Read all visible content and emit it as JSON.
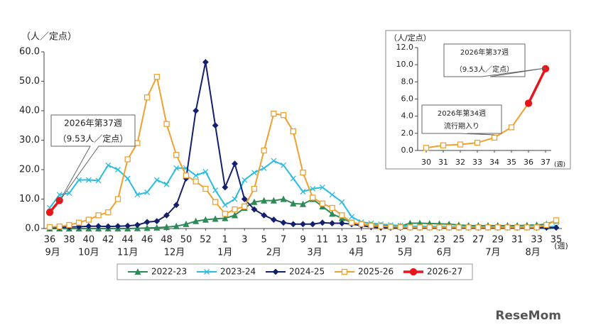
{
  "chart_data": [
    {
      "type": "line",
      "y_label": "（人／定点）",
      "x_unit": "(週)",
      "categories": [
        36,
        null,
        38,
        null,
        40,
        null,
        42,
        null,
        44,
        null,
        46,
        null,
        48,
        null,
        50,
        null,
        52,
        null,
        1,
        null,
        3,
        null,
        5,
        null,
        7,
        null,
        9,
        null,
        11,
        null,
        13,
        null,
        15,
        null,
        17,
        null,
        19,
        null,
        21,
        null,
        23,
        null,
        25,
        null,
        27,
        null,
        29,
        null,
        31,
        null,
        33,
        null,
        35
      ],
      "months": [
        "9月",
        "10月",
        "11月",
        "12月",
        "1月",
        "2月",
        "3月",
        "4月",
        "5月",
        "6月",
        "7月",
        "8月"
      ],
      "ylim": [
        0,
        60
      ],
      "yticks": [
        {
          "value": 0,
          "label": "0.0"
        },
        {
          "value": 10,
          "label": "10.0"
        },
        {
          "value": 20,
          "label": "20.0"
        },
        {
          "value": 30,
          "label": "30.0"
        },
        {
          "value": 40,
          "label": "40.0"
        },
        {
          "value": 50,
          "label": "50.0"
        },
        {
          "value": 60,
          "label": "60.0"
        }
      ],
      "legend": "bottom",
      "series": [
        {
          "name": "2022-23",
          "color": "#2e8b57",
          "marker": "triangle",
          "values": [
            0,
            0,
            0,
            0,
            0,
            0,
            0,
            0,
            0,
            0.1,
            0.2,
            0.3,
            0.5,
            0.8,
            1.5,
            2.5,
            3,
            3.3,
            3.5,
            4.5,
            7,
            9,
            9.5,
            9.5,
            10,
            8.5,
            8.3,
            10,
            7.5,
            5,
            3.5,
            2,
            1.5,
            1.2,
            1,
            0.8,
            0.8,
            1.8,
            1.8,
            1.7,
            1.6,
            1.5,
            1.2,
            1,
            1,
            1,
            1,
            1,
            1,
            1.1,
            1.2,
            1.5,
            2.7
          ]
        },
        {
          "name": "2023-24",
          "color": "#2bbde0",
          "marker": "x",
          "values": [
            7,
            11.5,
            12,
            16.5,
            16.5,
            16.3,
            21.5,
            20,
            17,
            11.5,
            12.3,
            16.5,
            15,
            20.5,
            20.5,
            18,
            19.3,
            13,
            8,
            10,
            16.5,
            19,
            20.5,
            23,
            21.5,
            17,
            12.5,
            13.5,
            14,
            11.5,
            9,
            4,
            2.2,
            1.8,
            1.5,
            1.2,
            1,
            0.8,
            0.8,
            0.7,
            0.7,
            0.6,
            0.6,
            0.5,
            0.5,
            0.5,
            0.5,
            0.5,
            0.5,
            0.5,
            0.5,
            0.6,
            0.7
          ]
        },
        {
          "name": "2024-25",
          "color": "#14206e",
          "marker": "diamond",
          "values": [
            0.3,
            0.4,
            0.5,
            0.6,
            0.8,
            0.8,
            0.7,
            0.8,
            0.9,
            1.2,
            2.2,
            2.5,
            4.5,
            8,
            17,
            40,
            56.5,
            35,
            14,
            22,
            10,
            6.5,
            4.5,
            3,
            2,
            1.5,
            1.5,
            1.5,
            2,
            1.8,
            1.8,
            1.5,
            1,
            0.5,
            0.3,
            0.3,
            0.3,
            0.3,
            0.3,
            0.3,
            0.3,
            0.3,
            0.3,
            0.3,
            0.3,
            0.3,
            0.3,
            0.3,
            0.3,
            0.3,
            0.3,
            0.3,
            0.3
          ]
        },
        {
          "name": "2025-26",
          "color": "#f0a030",
          "marker": "square",
          "values": [
            0.5,
            0.7,
            1.2,
            2,
            3,
            4.5,
            5.5,
            10,
            23.5,
            29,
            44.5,
            51.5,
            35.5,
            25,
            18,
            16,
            13.5,
            9,
            5,
            6.5,
            7.5,
            13.5,
            26.5,
            39,
            38.5,
            33,
            19,
            10.5,
            8.5,
            7,
            4.5,
            2,
            1.5,
            1,
            0.8,
            0.6,
            0.5,
            0.4,
            0.4,
            0.4,
            0.4,
            0.4,
            0.4,
            0.4,
            0.4,
            0.4,
            0.4,
            0.4,
            0.4,
            0.4,
            0.4,
            1.2,
            2.8
          ]
        },
        {
          "name": "2026-27",
          "color": "#e8161b",
          "marker": "circle",
          "values": [
            5.5,
            9.53,
            null,
            null,
            null,
            null,
            null,
            null,
            null,
            null,
            null,
            null,
            null,
            null,
            null,
            null,
            null,
            null,
            null,
            null,
            null,
            null,
            null,
            null,
            null,
            null,
            null,
            null,
            null,
            null,
            null,
            null,
            null,
            null,
            null,
            null,
            null,
            null,
            null,
            null,
            null,
            null,
            null,
            null,
            null,
            null,
            null,
            null,
            null,
            null,
            null,
            null,
            null
          ]
        }
      ],
      "annotations": [
        {
          "lines": [
            "2026年第37週",
            "（9.53人／定点）"
          ]
        }
      ]
    },
    {
      "type": "line",
      "y_label": "（人/定点）",
      "x_unit": "(週)",
      "categories": [
        30,
        31,
        32,
        33,
        34,
        35,
        36,
        37
      ],
      "ylim": [
        0,
        12
      ],
      "yticks": [
        {
          "value": 0,
          "label": "0.0"
        },
        {
          "value": 2,
          "label": "2.0"
        },
        {
          "value": 4,
          "label": "4.0"
        },
        {
          "value": 6,
          "label": "6.0"
        },
        {
          "value": 8,
          "label": "8.0"
        },
        {
          "value": 10,
          "label": "10.0"
        },
        {
          "value": 12,
          "label": "12.0"
        }
      ],
      "series": [
        {
          "color": "#f0a030",
          "marker": "square",
          "values": [
            0.3,
            0.6,
            0.7,
            0.9,
            1.5,
            2.7,
            5.5,
            null
          ]
        },
        {
          "color": "#e8161b",
          "marker": "circle",
          "values": [
            null,
            null,
            null,
            null,
            null,
            null,
            5.5,
            9.53
          ]
        }
      ],
      "annotations": [
        {
          "lines": [
            "2026年第37週",
            "（9.53人／定点）"
          ]
        },
        {
          "lines": [
            "2026年第34週",
            "流行期入り"
          ]
        }
      ]
    }
  ],
  "logo": "ReseMom"
}
